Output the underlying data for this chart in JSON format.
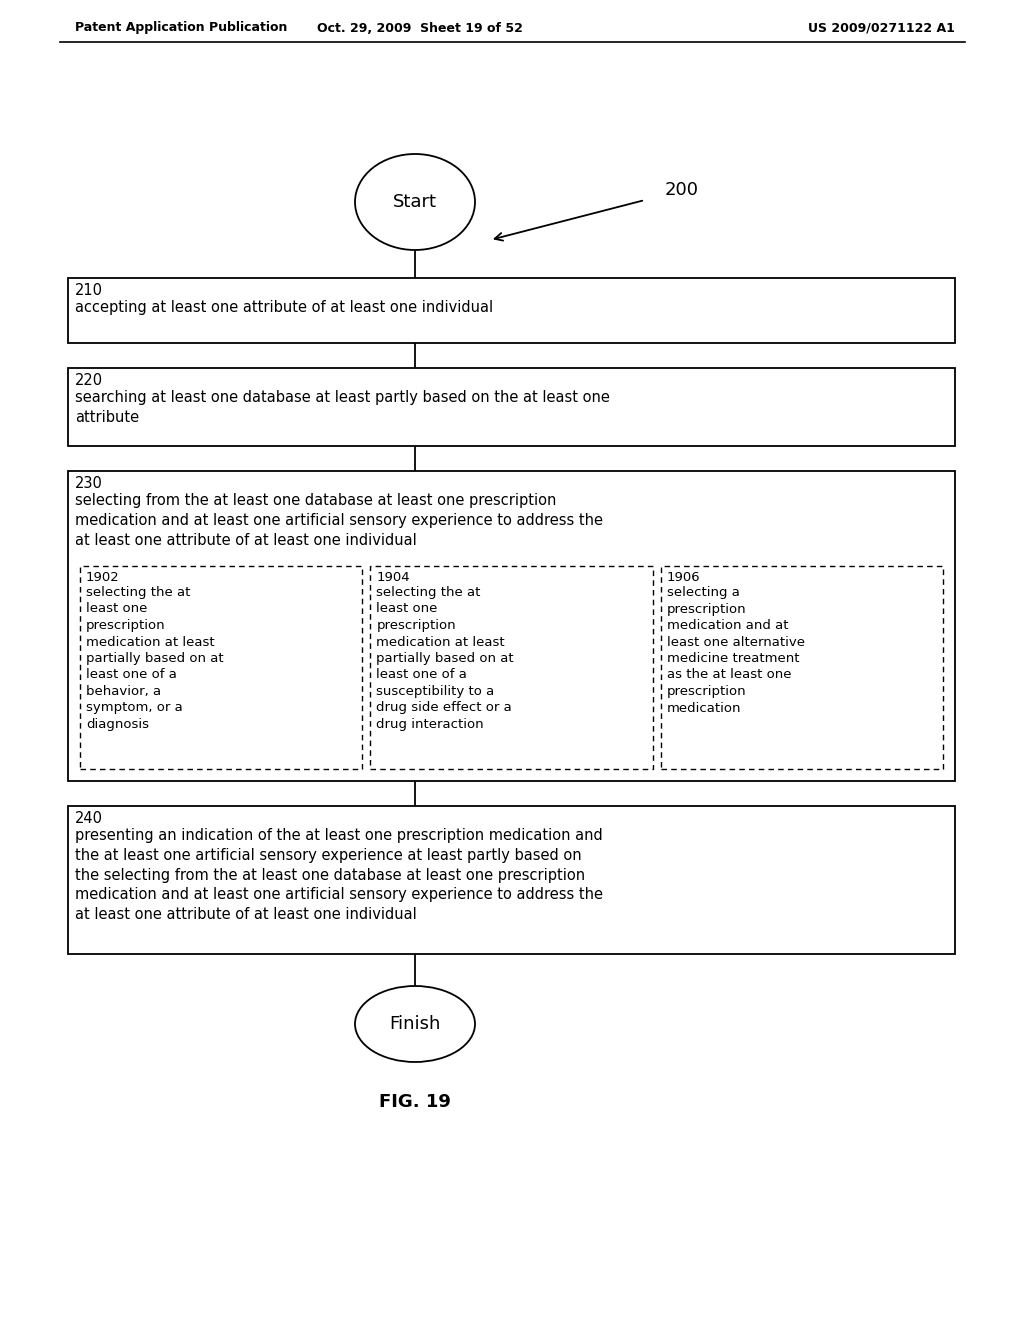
{
  "bg_color": "#ffffff",
  "header_left": "Patent Application Publication",
  "header_mid": "Oct. 29, 2009  Sheet 19 of 52",
  "header_right": "US 2009/0271122 A1",
  "footer_label": "FIG. 19",
  "diagram_label": "200",
  "start_label": "Start",
  "finish_label": "Finish",
  "box210_num": "210",
  "box210_text": "accepting at least one attribute of at least one individual",
  "box220_num": "220",
  "box220_text": "searching at least one database at least partly based on the at least one\nattribute",
  "box230_num": "230",
  "box230_text": "selecting from the at least one database at least one prescription\nmedication and at least one artificial sensory experience to address the\nat least one attribute of at least one individual",
  "box1902_num": "1902",
  "box1902_text": "selecting the at\nleast one\nprescription\nmedication at least\npartially based on at\nleast one of a\nbehavior, a\nsymptom, or a\ndiagnosis",
  "box1904_num": "1904",
  "box1904_text": "selecting the at\nleast one\nprescription\nmedication at least\npartially based on at\nleast one of a\nsusceptibility to a\ndrug side effect or a\ndrug interaction",
  "box1906_num": "1906",
  "box1906_text": "selecting a\nprescription\nmedication and at\nleast one alternative\nmedicine treatment\nas the at least one\nprescription\nmedication",
  "box240_num": "240",
  "box240_text": "presenting an indication of the at least one prescription medication and\nthe at least one artificial sensory experience at least partly based on\nthe selecting from the at least one database at least one prescription\nmedication and at least one artificial sensory experience to address the\nat least one attribute of at least one individual"
}
